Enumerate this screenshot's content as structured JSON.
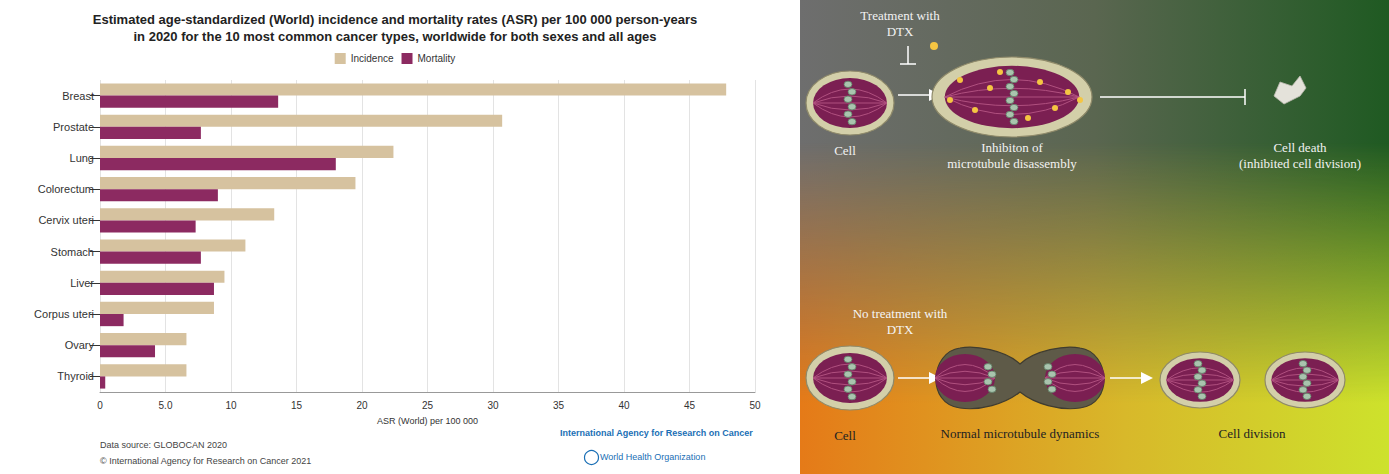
{
  "chart_data": {
    "type": "bar",
    "title": "Estimated age-standardized (World) incidence and mortality rates (ASR) per 100 000 person-years in 2020 for the 10 most common cancer types, worldwide for both sexes and all ages",
    "orientation": "horizontal",
    "categories": [
      "Breast",
      "Prostate",
      "Lung",
      "Colorectum",
      "Cervix uteri",
      "Stomach",
      "Liver",
      "Corpus uteri",
      "Ovary",
      "Thyroid"
    ],
    "series": [
      {
        "name": "Incidence",
        "color": "#d6c29f",
        "values": [
          47.8,
          30.7,
          22.4,
          19.5,
          13.3,
          11.1,
          9.5,
          8.7,
          6.6,
          6.6
        ]
      },
      {
        "name": "Mortality",
        "color": "#8c2a61",
        "values": [
          13.6,
          7.7,
          18.0,
          9.0,
          7.3,
          7.7,
          8.7,
          1.8,
          4.2,
          0.4
        ]
      }
    ],
    "x_label": "ASR (World) per 100 000",
    "xlim": [
      0,
      50
    ],
    "xticks": [
      0,
      {
        "value": 5,
        "label": "5.0"
      },
      10,
      15,
      20,
      25,
      30,
      35,
      40,
      45,
      50
    ],
    "grid": true,
    "legend": "top",
    "annotations": [
      "Data source: GLOBOCAN 2020",
      "© International Agency for Research on Cancer 2021",
      "International Agency for Research on Cancer",
      "World Health Organization"
    ]
  },
  "diagram": {
    "treated": {
      "label": "Treatment with DTX",
      "steps": [
        "Cell",
        "Inhibiton of microtubule disassembly",
        "Cell death (inhibited cell division)"
      ]
    },
    "untreated": {
      "label": "No treatment with DTX",
      "steps": [
        "Cell",
        "Normal microtubule dynamics",
        "Cell division"
      ]
    }
  }
}
